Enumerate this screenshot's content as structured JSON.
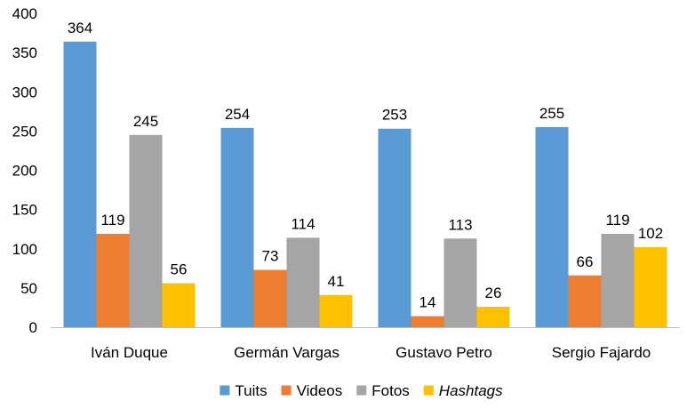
{
  "chart_data": {
    "type": "bar",
    "categories": [
      "Iván Duque",
      "Germán Vargas",
      "Gustavo Petro",
      "Sergio Fajardo"
    ],
    "series": [
      {
        "name": "Tuits",
        "values": [
          364,
          254,
          253,
          255
        ],
        "color": "#5B9BD5"
      },
      {
        "name": "Videos",
        "values": [
          119,
          73,
          14,
          66
        ],
        "color": "#ED7D31"
      },
      {
        "name": "Fotos",
        "values": [
          245,
          114,
          113,
          119
        ],
        "color": "#A5A5A5"
      },
      {
        "name": "Hashtags",
        "values": [
          56,
          41,
          26,
          102
        ],
        "color": "#FFC000",
        "italic": true
      }
    ],
    "ylim": [
      0,
      400
    ],
    "yticks": [
      "0",
      "50",
      "100",
      "150",
      "200",
      "250",
      "300",
      "350",
      "400"
    ],
    "grid": false,
    "legend_position": "bottom"
  }
}
